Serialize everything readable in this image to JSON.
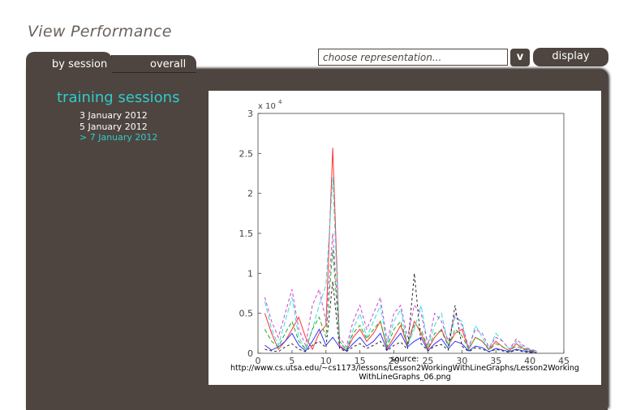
{
  "page": {
    "title": "View Performance"
  },
  "tabs": [
    {
      "label": "by session",
      "active": true
    },
    {
      "label": "overall",
      "active": false
    }
  ],
  "toolbar": {
    "select_placeholder": "choose representation...",
    "dropdown_label": "v",
    "display_label": "display"
  },
  "sidebar": {
    "heading": "training sessions",
    "sessions": [
      {
        "label": "3 January 2012",
        "active": false
      },
      {
        "label": "5 January 2012",
        "active": false
      },
      {
        "label": "> 7 January 2012",
        "active": true
      }
    ]
  },
  "colors": {
    "panel": "#4e4540",
    "accent": "#2ecccc",
    "title": "#6a615b"
  },
  "chart": {
    "source_lines": [
      "source:",
      "http://www.cs.utsa.edu/~cs1173/lessons/Lesson2WorkingWithLineGraphs/Lesson2Working",
      "WithLineGraphs_06.png"
    ]
  },
  "chart_data": {
    "type": "line",
    "xlim": [
      0,
      45
    ],
    "ylim": [
      0,
      30000
    ],
    "x_ticks": [
      "0",
      "5",
      "10",
      "15",
      "20",
      "25",
      "30",
      "35",
      "40",
      "45"
    ],
    "y_ticks": [
      "0",
      "0.5",
      "1",
      "1.5",
      "2",
      "2.5",
      "3"
    ],
    "y_exponent_label": "x 10",
    "y_exponent": "4",
    "x": [
      1,
      2,
      3,
      4,
      5,
      6,
      7,
      8,
      9,
      10,
      11,
      12,
      13,
      14,
      15,
      16,
      17,
      18,
      19,
      20,
      21,
      22,
      23,
      24,
      25,
      26,
      27,
      28,
      29,
      30,
      31,
      32,
      33,
      34,
      35,
      36,
      37,
      38,
      39,
      40,
      41
    ],
    "series": [
      {
        "color": "#ff3333",
        "values": [
          5000,
          2500,
          500,
          1500,
          3000,
          4500,
          2000,
          500,
          2500,
          3500,
          25700,
          1000,
          300,
          2000,
          3000,
          1500,
          2500,
          4000,
          600,
          2000,
          3500,
          1000,
          4000,
          2500,
          500,
          2000,
          3000,
          1000,
          2500,
          3000,
          500,
          2000,
          1500,
          500,
          1500,
          800,
          300,
          1200,
          600,
          400,
          300
        ]
      },
      {
        "color": "#33dddd",
        "values": [
          6500,
          3000,
          1000,
          4000,
          7000,
          2000,
          500,
          3000,
          6000,
          8500,
          22000,
          1500,
          500,
          3000,
          5000,
          2000,
          4000,
          6000,
          1000,
          4000,
          5500,
          1000,
          3000,
          6000,
          1000,
          3500,
          5000,
          1000,
          4500,
          4000,
          500,
          3500,
          2000,
          500,
          2500,
          1500,
          500,
          1500,
          800,
          400,
          300
        ]
      },
      {
        "color": "#3333ff",
        "values": [
          1000,
          400,
          800,
          1500,
          2500,
          1000,
          300,
          1500,
          3000,
          1000,
          2000,
          800,
          300,
          1200,
          2000,
          900,
          1500,
          2500,
          400,
          1500,
          2500,
          800,
          1500,
          2000,
          300,
          1200,
          1800,
          600,
          1500,
          1200,
          300,
          900,
          700,
          200,
          600,
          400,
          200,
          500,
          300,
          200,
          100
        ]
      },
      {
        "color": "#cc44cc",
        "values": [
          7000,
          4000,
          2000,
          5000,
          8000,
          3000,
          1000,
          6000,
          8000,
          4000,
          15000,
          2000,
          800,
          4000,
          6000,
          3000,
          5000,
          7000,
          1500,
          5000,
          6000,
          2000,
          6000,
          5000,
          1000,
          5000,
          4000,
          1500,
          5000,
          3500,
          800,
          3000,
          2500,
          700,
          2000,
          1500,
          500,
          1800,
          1000,
          500,
          300
        ]
      },
      {
        "color": "#22aa22",
        "values": [
          3000,
          1500,
          800,
          2500,
          4000,
          1500,
          500,
          3000,
          4500,
          2000,
          13000,
          1500,
          400,
          2500,
          3500,
          1800,
          3000,
          4000,
          800,
          3000,
          4000,
          1200,
          3500,
          3000,
          600,
          2500,
          2800,
          900,
          3000,
          2200,
          500,
          2000,
          1500,
          400,
          1200,
          800,
          300,
          900,
          500,
          300,
          200
        ]
      },
      {
        "color": "#222222",
        "values": [
          500,
          300,
          200,
          800,
          1200,
          500,
          200,
          1000,
          1500,
          700,
          9000,
          600,
          200,
          800,
          1200,
          600,
          1000,
          1500,
          300,
          1000,
          1400,
          500,
          10000,
          1200,
          300,
          900,
          1100,
          400,
          6000,
          900,
          200,
          700,
          500,
          200,
          500,
          300,
          100,
          400,
          200,
          100,
          100
        ]
      }
    ]
  }
}
